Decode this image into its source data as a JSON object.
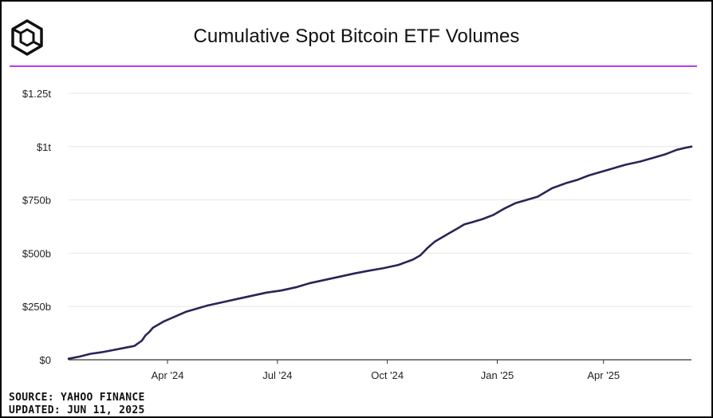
{
  "header": {
    "title": "Cumulative Spot Bitcoin ETF Volumes",
    "logo_icon": "cube-icon"
  },
  "footer": {
    "source": "SOURCE: YAHOO FINANCE",
    "updated": "UPDATED: JUN 11, 2025"
  },
  "colors": {
    "line": "#2b2457",
    "accent": "#b53cf5",
    "grid": "#e6e6e6",
    "axis": "#333333",
    "text": "#222222"
  },
  "chart_data": {
    "type": "line",
    "title": "Cumulative Spot Bitcoin ETF Volumes",
    "xlabel": "",
    "ylabel": "",
    "x_unit": "months since Jan 11, 2024",
    "xlim": [
      0,
      17
    ],
    "ylim": [
      0,
      1250
    ],
    "y_unit": "billions USD",
    "yticks": [
      {
        "value": 0,
        "label": "$0"
      },
      {
        "value": 250,
        "label": "$250b"
      },
      {
        "value": 500,
        "label": "$500b"
      },
      {
        "value": 750,
        "label": "$750b"
      },
      {
        "value": 1000,
        "label": "$1t"
      },
      {
        "value": 1250,
        "label": "$1.25t"
      }
    ],
    "xticks": [
      {
        "value": 2.7,
        "label": "Apr '24"
      },
      {
        "value": 5.7,
        "label": "Jul '24"
      },
      {
        "value": 8.7,
        "label": "Oct '24"
      },
      {
        "value": 11.7,
        "label": "Jan '25"
      },
      {
        "value": 14.6,
        "label": "Apr '25"
      }
    ],
    "grid": true,
    "series": [
      {
        "name": "Cumulative volume",
        "x": [
          0,
          0.3,
          0.6,
          0.9,
          1.2,
          1.5,
          1.8,
          2.0,
          2.1,
          2.2,
          2.3,
          2.45,
          2.6,
          2.8,
          3.0,
          3.2,
          3.5,
          3.8,
          4.2,
          4.6,
          5.0,
          5.4,
          5.8,
          6.2,
          6.6,
          7.0,
          7.4,
          7.8,
          8.2,
          8.6,
          9.0,
          9.4,
          9.6,
          9.8,
          10.0,
          10.2,
          10.4,
          10.6,
          10.8,
          11.0,
          11.3,
          11.6,
          11.9,
          12.2,
          12.5,
          12.8,
          13.2,
          13.6,
          13.9,
          14.2,
          14.5,
          14.8,
          15.2,
          15.6,
          16.0,
          16.3,
          16.6,
          16.85,
          17.0
        ],
        "values": [
          5,
          15,
          28,
          35,
          45,
          55,
          65,
          90,
          115,
          130,
          150,
          165,
          180,
          195,
          210,
          225,
          240,
          255,
          270,
          285,
          300,
          315,
          325,
          340,
          360,
          375,
          390,
          405,
          418,
          430,
          445,
          470,
          490,
          525,
          555,
          575,
          595,
          615,
          635,
          645,
          660,
          680,
          710,
          735,
          750,
          765,
          805,
          830,
          845,
          865,
          880,
          895,
          915,
          930,
          950,
          965,
          985,
          995,
          1000
        ]
      }
    ]
  }
}
